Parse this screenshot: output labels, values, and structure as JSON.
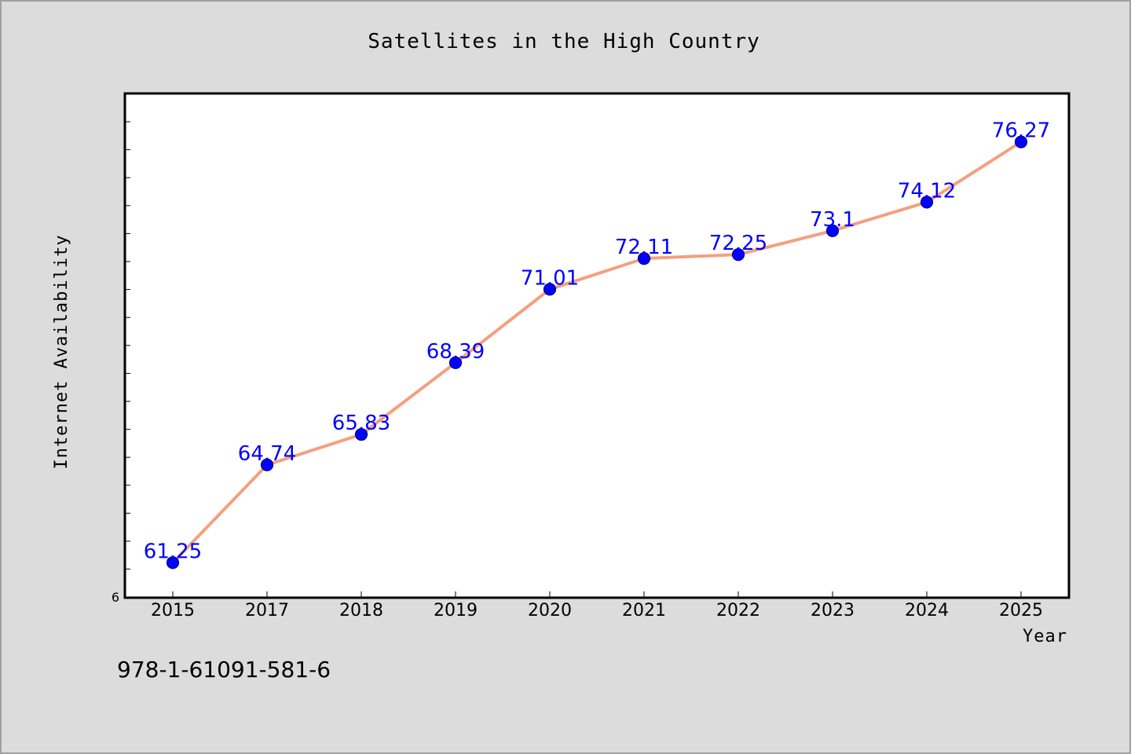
{
  "chart_data": {
    "type": "line",
    "title": "Satellites in the High Country",
    "xlabel": "Year",
    "ylabel": "Internet Availability",
    "categories": [
      "2015",
      "2017",
      "2018",
      "2019",
      "2020",
      "2021",
      "2022",
      "2023",
      "2024",
      "2025"
    ],
    "series": [
      {
        "values": [
          61.25,
          64.74,
          65.83,
          68.39,
          71.01,
          72.11,
          72.25,
          73.1,
          74.12,
          76.27
        ],
        "data_labels": [
          "61.25",
          "64.74",
          "65.83",
          "68.39",
          "71.01",
          "72.11",
          "72.25",
          "73.1",
          "74.12",
          "76.27"
        ]
      }
    ],
    "ylim": [
      60,
      78
    ],
    "y_tick_labels": [
      "6"
    ],
    "grid": false,
    "legend": "none",
    "colors": {
      "line": "#f4a07f",
      "marker": "#0000ff",
      "marker_edge": "#00007a",
      "data_label": "#0000ff",
      "background": "#dcdcdc",
      "plot_area": "#ffffff"
    }
  },
  "footer": {
    "isbn": "978-1-61091-581-6"
  }
}
